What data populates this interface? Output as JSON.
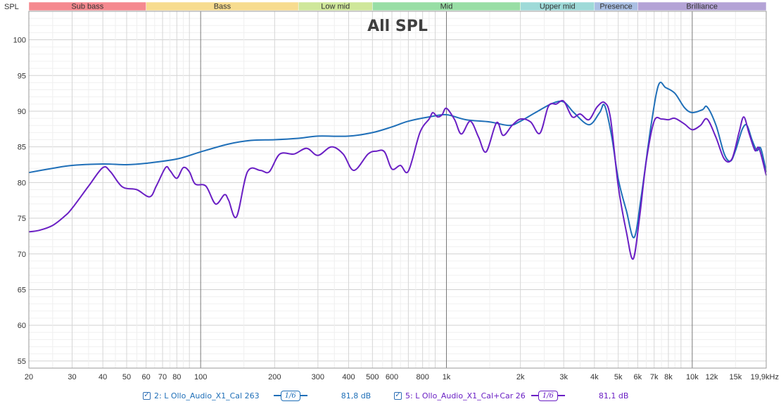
{
  "chart_data": {
    "type": "line",
    "title": "All SPL",
    "ylabel": "SPL",
    "x_scale": "log",
    "xlim": [
      20,
      20000
    ],
    "ylim": [
      54,
      104
    ],
    "grid": true,
    "y_ticks": [
      55,
      60,
      65,
      70,
      75,
      80,
      85,
      90,
      95,
      100
    ],
    "x_ticks": [
      {
        "f": 20,
        "label": "20"
      },
      {
        "f": 30,
        "label": "30"
      },
      {
        "f": 40,
        "label": "40"
      },
      {
        "f": 50,
        "label": "50"
      },
      {
        "f": 60,
        "label": "60"
      },
      {
        "f": 70,
        "label": "70"
      },
      {
        "f": 80,
        "label": "80"
      },
      {
        "f": 100,
        "label": "100"
      },
      {
        "f": 200,
        "label": "200"
      },
      {
        "f": 300,
        "label": "300"
      },
      {
        "f": 400,
        "label": "400"
      },
      {
        "f": 500,
        "label": "500"
      },
      {
        "f": 600,
        "label": "600"
      },
      {
        "f": 800,
        "label": "800"
      },
      {
        "f": 1000,
        "label": "1k"
      },
      {
        "f": 2000,
        "label": "2k"
      },
      {
        "f": 3000,
        "label": "3k"
      },
      {
        "f": 4000,
        "label": "4k"
      },
      {
        "f": 5000,
        "label": "5k"
      },
      {
        "f": 6000,
        "label": "6k"
      },
      {
        "f": 7000,
        "label": "7k"
      },
      {
        "f": 8000,
        "label": "8k"
      },
      {
        "f": 10000,
        "label": "10k"
      },
      {
        "f": 12000,
        "label": "12k"
      },
      {
        "f": 15000,
        "label": "15k"
      },
      {
        "f": 19900,
        "label": "19,9kHz"
      }
    ],
    "bands": [
      {
        "name": "Sub bass",
        "from": 20,
        "to": 60,
        "color": "#f5898f"
      },
      {
        "name": "Bass",
        "from": 60,
        "to": 250,
        "color": "#f7dc8f"
      },
      {
        "name": "Low mid",
        "from": 250,
        "to": 500,
        "color": "#cfe79a"
      },
      {
        "name": "Mid",
        "from": 500,
        "to": 2000,
        "color": "#98dea5"
      },
      {
        "name": "Upper mid",
        "from": 2000,
        "to": 4000,
        "color": "#9edad8"
      },
      {
        "name": "Presence",
        "from": 4000,
        "to": 6000,
        "color": "#a9bfe3"
      },
      {
        "name": "Brilliance",
        "from": 6000,
        "to": 20000,
        "color": "#b4a3d6"
      }
    ],
    "series": [
      {
        "name": "2: L Ollo_Audio_X1_Cal 263",
        "color": "#1f6fb8",
        "smoothing": "1/6",
        "level": "81,8 dB",
        "points": [
          [
            20,
            81.4
          ],
          [
            25,
            82.0
          ],
          [
            30,
            82.4
          ],
          [
            40,
            82.6
          ],
          [
            50,
            82.5
          ],
          [
            60,
            82.7
          ],
          [
            80,
            83.3
          ],
          [
            100,
            84.3
          ],
          [
            130,
            85.4
          ],
          [
            160,
            85.9
          ],
          [
            200,
            86.0
          ],
          [
            250,
            86.2
          ],
          [
            300,
            86.5
          ],
          [
            400,
            86.5
          ],
          [
            500,
            87.0
          ],
          [
            600,
            87.8
          ],
          [
            700,
            88.6
          ],
          [
            850,
            89.2
          ],
          [
            1000,
            89.5
          ],
          [
            1200,
            88.8
          ],
          [
            1500,
            88.5
          ],
          [
            1800,
            88.0
          ],
          [
            2000,
            88.6
          ],
          [
            2300,
            89.8
          ],
          [
            2700,
            91.1
          ],
          [
            3000,
            91.3
          ],
          [
            3300,
            89.8
          ],
          [
            3800,
            88.1
          ],
          [
            4200,
            89.8
          ],
          [
            4400,
            90.8
          ],
          [
            4700,
            86.5
          ],
          [
            5000,
            80.5
          ],
          [
            5400,
            76.0
          ],
          [
            5800,
            72.3
          ],
          [
            6200,
            78.0
          ],
          [
            6800,
            88.0
          ],
          [
            7300,
            93.7
          ],
          [
            7800,
            93.3
          ],
          [
            8500,
            92.5
          ],
          [
            9300,
            90.5
          ],
          [
            10000,
            89.8
          ],
          [
            11000,
            90.2
          ],
          [
            11500,
            90.6
          ],
          [
            12500,
            88.0
          ],
          [
            13500,
            84.0
          ],
          [
            14300,
            83.0
          ],
          [
            15000,
            84.5
          ],
          [
            16000,
            87.5
          ],
          [
            16700,
            88.0
          ],
          [
            17500,
            86.0
          ],
          [
            18300,
            84.5
          ],
          [
            19000,
            84.8
          ],
          [
            20000,
            81.5
          ]
        ]
      },
      {
        "name": "5: L Ollo_Audio_X1_Cal+Car 26",
        "color": "#6a1fc4",
        "smoothing": "1/6",
        "level": "81,1 dB",
        "points": [
          [
            20,
            73.1
          ],
          [
            22,
            73.3
          ],
          [
            25,
            74.0
          ],
          [
            28,
            75.3
          ],
          [
            30,
            76.4
          ],
          [
            35,
            79.5
          ],
          [
            40,
            82.1
          ],
          [
            43,
            81.5
          ],
          [
            48,
            79.4
          ],
          [
            55,
            79.0
          ],
          [
            62,
            78.0
          ],
          [
            66,
            79.5
          ],
          [
            72,
            82.1
          ],
          [
            75,
            81.7
          ],
          [
            80,
            80.6
          ],
          [
            85,
            82.1
          ],
          [
            90,
            81.5
          ],
          [
            95,
            79.8
          ],
          [
            105,
            79.5
          ],
          [
            115,
            77.0
          ],
          [
            125,
            78.3
          ],
          [
            130,
            77.5
          ],
          [
            140,
            75.2
          ],
          [
            155,
            81.5
          ],
          [
            175,
            81.7
          ],
          [
            190,
            81.5
          ],
          [
            210,
            84.0
          ],
          [
            240,
            84.0
          ],
          [
            270,
            84.8
          ],
          [
            300,
            83.8
          ],
          [
            340,
            85.0
          ],
          [
            380,
            84.0
          ],
          [
            420,
            81.7
          ],
          [
            480,
            84.0
          ],
          [
            520,
            84.4
          ],
          [
            560,
            84.3
          ],
          [
            600,
            81.9
          ],
          [
            650,
            82.4
          ],
          [
            700,
            81.6
          ],
          [
            780,
            87.0
          ],
          [
            850,
            88.9
          ],
          [
            880,
            89.8
          ],
          [
            920,
            89.2
          ],
          [
            960,
            89.5
          ],
          [
            1000,
            90.4
          ],
          [
            1080,
            88.8
          ],
          [
            1150,
            86.8
          ],
          [
            1250,
            88.6
          ],
          [
            1350,
            86.4
          ],
          [
            1450,
            84.3
          ],
          [
            1600,
            88.4
          ],
          [
            1700,
            86.6
          ],
          [
            1850,
            88.0
          ],
          [
            2000,
            88.9
          ],
          [
            2200,
            88.5
          ],
          [
            2400,
            86.9
          ],
          [
            2600,
            90.7
          ],
          [
            2800,
            91.0
          ],
          [
            3000,
            91.4
          ],
          [
            3250,
            89.2
          ],
          [
            3500,
            89.6
          ],
          [
            3800,
            88.8
          ],
          [
            4100,
            90.6
          ],
          [
            4400,
            91.2
          ],
          [
            4650,
            89.0
          ],
          [
            5000,
            79.5
          ],
          [
            5400,
            73.0
          ],
          [
            5750,
            69.3
          ],
          [
            6100,
            75.0
          ],
          [
            6500,
            83.0
          ],
          [
            7000,
            88.6
          ],
          [
            7500,
            88.9
          ],
          [
            8000,
            88.8
          ],
          [
            8500,
            89.0
          ],
          [
            9300,
            88.2
          ],
          [
            10000,
            87.4
          ],
          [
            10800,
            88.0
          ],
          [
            11500,
            88.9
          ],
          [
            12500,
            86.3
          ],
          [
            13500,
            83.3
          ],
          [
            14500,
            83.3
          ],
          [
            15500,
            87.0
          ],
          [
            16200,
            89.2
          ],
          [
            17000,
            87.0
          ],
          [
            18000,
            84.5
          ],
          [
            18700,
            84.8
          ],
          [
            20000,
            81.0
          ]
        ]
      }
    ]
  }
}
